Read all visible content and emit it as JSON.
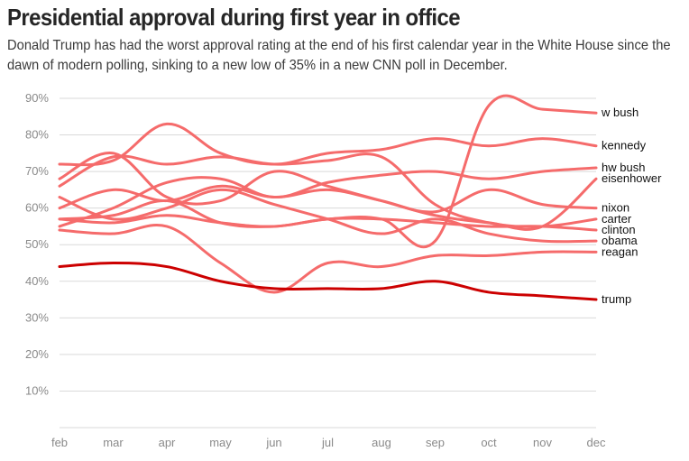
{
  "header": {
    "title": "Presidential approval during first year in office",
    "subtitle": "Donald Trump has had the worst approval rating at the end of his first calendar year in the White House since the dawn of modern polling, sinking to a new low of 35% in a new CNN poll in December."
  },
  "chart_data": {
    "type": "line",
    "title": "Presidential approval during first year in office",
    "xlabel": "",
    "ylabel": "",
    "x": [
      "feb",
      "mar",
      "apr",
      "may",
      "jun",
      "jul",
      "aug",
      "sep",
      "oct",
      "nov",
      "dec"
    ],
    "ylim": [
      0,
      90
    ],
    "yticks": [
      10,
      20,
      30,
      40,
      50,
      60,
      70,
      80,
      90
    ],
    "ytick_labels": [
      "10%",
      "20%",
      "30%",
      "40%",
      "50%",
      "60%",
      "70%",
      "80%",
      "90%"
    ],
    "grid": true,
    "legend": "direct labels at right end of lines",
    "colors": {
      "highlight": "#cc0000",
      "others": "#f56b6b"
    },
    "series": [
      {
        "name": "w bush",
        "values": [
          57,
          58,
          62,
          56,
          55,
          57,
          57,
          51,
          88,
          87,
          86
        ]
      },
      {
        "name": "kennedy",
        "values": [
          72,
          73,
          83,
          75,
          72,
          75,
          76,
          79,
          77,
          79,
          77
        ]
      },
      {
        "name": "hw bush",
        "values": [
          55,
          60,
          67,
          68,
          63,
          67,
          69,
          70,
          68,
          70,
          71
        ]
      },
      {
        "name": "eisenhower",
        "values": [
          68,
          75,
          63,
          62,
          70,
          66,
          62,
          58,
          56,
          55,
          68
        ]
      },
      {
        "name": "nixon",
        "values": [
          60,
          65,
          62,
          66,
          63,
          65,
          62,
          59,
          65,
          61,
          60
        ]
      },
      {
        "name": "carter",
        "values": [
          66,
          74,
          72,
          74,
          72,
          73,
          74,
          61,
          56,
          55,
          57
        ]
      },
      {
        "name": "clinton",
        "values": [
          57,
          56,
          58,
          56,
          55,
          57,
          57,
          56,
          55,
          55,
          54
        ]
      },
      {
        "name": "obama",
        "values": [
          63,
          57,
          60,
          65,
          61,
          57,
          53,
          57,
          53,
          51,
          51
        ]
      },
      {
        "name": "reagan",
        "values": [
          54,
          53,
          55,
          45,
          37,
          45,
          44,
          47,
          47,
          48,
          48
        ]
      },
      {
        "name": "trump",
        "values": [
          44,
          45,
          44,
          40,
          38,
          38,
          38,
          40,
          37,
          36,
          35
        ],
        "highlight": true
      }
    ]
  }
}
